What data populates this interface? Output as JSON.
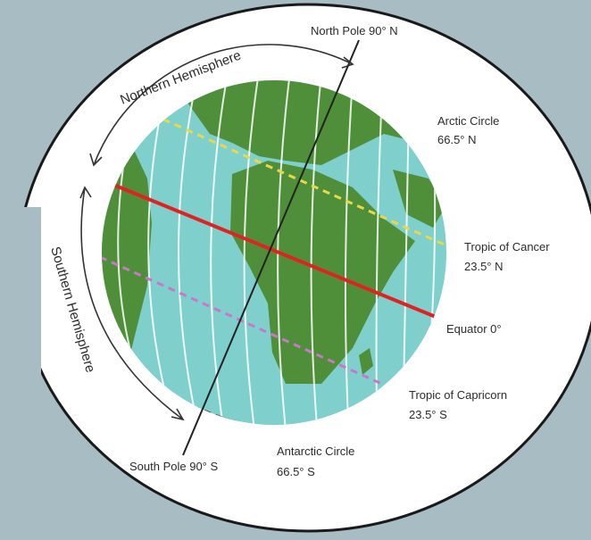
{
  "labels": {
    "north_pole": "North Pole 90° N",
    "south_pole": "South Pole 90° S",
    "arctic_circle_name": "Arctic Circle",
    "arctic_circle_lat": "66.5° N",
    "tropic_cancer_name": "Tropic of Cancer",
    "tropic_cancer_lat": "23.5° N",
    "equator": "Equator 0°",
    "tropic_capricorn_name": "Tropic of Capricorn",
    "tropic_capricorn_lat": "23.5° S",
    "antarctic_circle_name": "Antarctic Circle",
    "antarctic_circle_lat": "66.5° S",
    "northern_hemisphere": "Northern Hemisphere",
    "southern_hemisphere": "Southern Hemisphere"
  },
  "colors": {
    "background": "#a7bcc3",
    "ocean": "#7fcfcc",
    "land": "#4f8f3a",
    "equator_line": "#e02222",
    "arctic_line": "#2f7fc8",
    "tropic_cancer_line": "#e8d84a",
    "tropic_capricorn_line": "#c878c8",
    "antarctic_line": "#222222"
  },
  "icons": [
    "globe-icon"
  ]
}
